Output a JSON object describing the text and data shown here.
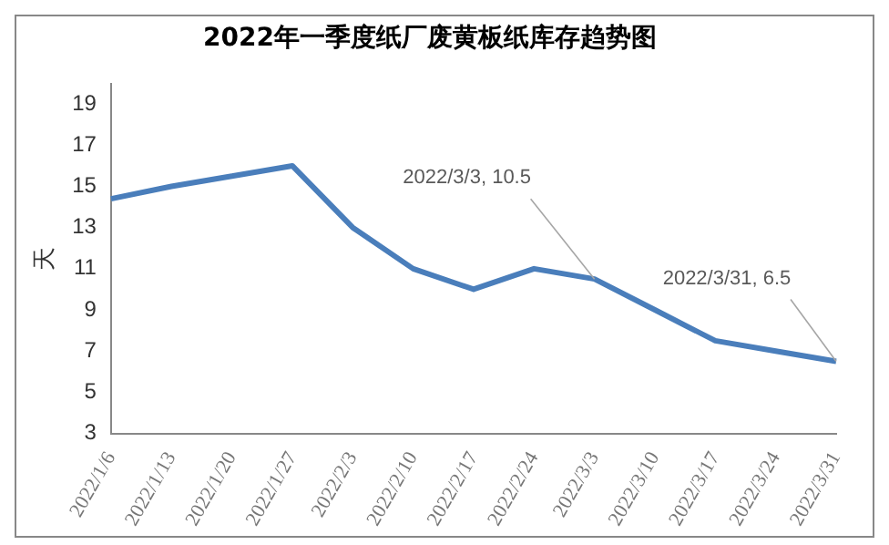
{
  "chart_data": {
    "type": "line",
    "title": "2022年一季度纸厂废黄板纸库存趋势图",
    "ylabel": "天",
    "categories": [
      "2022/1/6",
      "2022/1/13",
      "2022/1/20",
      "2022/1/27",
      "2022/2/3",
      "2022/2/10",
      "2022/2/17",
      "2022/2/24",
      "2022/3/3",
      "2022/3/10",
      "2022/3/17",
      "2022/3/24",
      "2022/3/31"
    ],
    "series": [
      {
        "color": "#4a7ebb",
        "values": [
          14.4,
          15,
          15.5,
          16,
          13,
          11,
          10,
          11,
          10.5,
          9,
          7.5,
          7,
          6.5
        ]
      }
    ],
    "ylim": [
      3,
      20
    ],
    "yticks": [
      3,
      5,
      7,
      9,
      11,
      13,
      15,
      17,
      19
    ],
    "grid": false,
    "legend": false,
    "marker": "none",
    "line_style": "solid",
    "annotations": [
      {
        "text": "2022/3/3, 10.5",
        "x": "2022/3/3",
        "y": 10.5
      },
      {
        "text": "2022/3/31, 6.5",
        "x": "2022/3/31",
        "y": 6.5
      }
    ]
  }
}
